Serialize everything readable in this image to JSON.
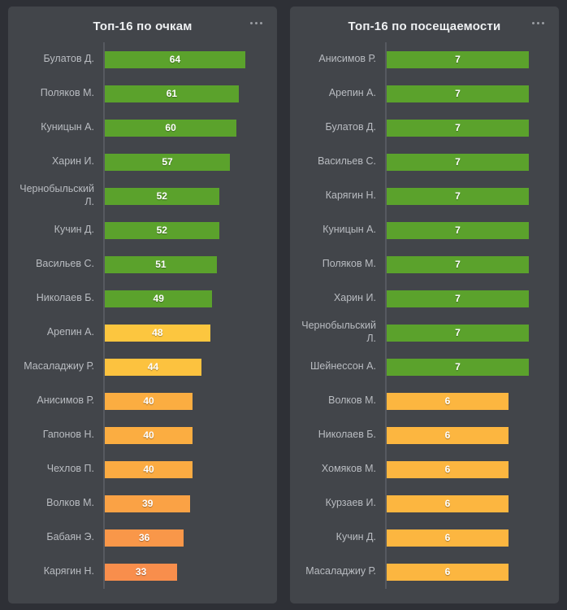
{
  "theme": {
    "page_background": "#2e3036",
    "panel_background": "#42454a",
    "axis_line_color": "#565960",
    "label_color": "#b9bcc1",
    "title_color": "#eef0f2",
    "bar_value_color": "#ffffff",
    "green": "#5ba22c",
    "yellow": "#fcc63f",
    "orange": "#f88e4c"
  },
  "panels": [
    {
      "menu_icon": "ellipsis-menu"
    },
    {
      "menu_icon": "ellipsis-menu"
    }
  ],
  "chart_data": [
    {
      "type": "bar",
      "orientation": "horizontal",
      "title": "Топ-16 по очкам",
      "categories": [
        "Булатов Д.",
        "Поляков М.",
        "Куницын А.",
        "Харин И.",
        "Чернобыльский Л.",
        "Кучин Д.",
        "Васильев С.",
        "Николаев Б.",
        "Арепин А.",
        "Масаладжиу Р.",
        "Анисимов Р.",
        "Гапонов Н.",
        "Чехлов П.",
        "Волков М.",
        "Бабаян Э.",
        "Карягин Н."
      ],
      "values": [
        64,
        61,
        60,
        57,
        52,
        52,
        51,
        49,
        48,
        44,
        40,
        40,
        40,
        39,
        36,
        33
      ],
      "bar_colors": [
        "#5ba22c",
        "#5ba22c",
        "#5ba22c",
        "#5ba22c",
        "#5ba22c",
        "#5ba22c",
        "#5ba22c",
        "#5ba22c",
        "#fcc63f",
        "#fcc23f",
        "#fbad41",
        "#fbad41",
        "#fbab42",
        "#faa245",
        "#f99749",
        "#f88e4c"
      ],
      "value_labels": "inside-center",
      "xlim": [
        0,
        74
      ],
      "grid": false,
      "legend": false
    },
    {
      "type": "bar",
      "orientation": "horizontal",
      "title": "Топ-16 по посещаемости",
      "categories": [
        "Анисимов Р.",
        "Арепин А.",
        "Булатов Д.",
        "Васильев С.",
        "Карягин Н.",
        "Куницын А.",
        "Поляков М.",
        "Харин И.",
        "Чернобыльский Л.",
        "Шейнессон А.",
        "Волков М.",
        "Николаев Б.",
        "Хомяков М.",
        "Курзаев И.",
        "Кучин Д.",
        "Масаладжиу Р."
      ],
      "values": [
        7,
        7,
        7,
        7,
        7,
        7,
        7,
        7,
        7,
        7,
        6,
        6,
        6,
        6,
        6,
        6
      ],
      "bar_colors": [
        "#5ba22c",
        "#5ba22c",
        "#5ba22c",
        "#5ba22c",
        "#5ba22c",
        "#5ba22c",
        "#5ba22c",
        "#5ba22c",
        "#5ba22c",
        "#5ba22c",
        "#fcb640",
        "#fcb640",
        "#fcb640",
        "#fcb640",
        "#fcb640",
        "#fcb640"
      ],
      "value_labels": "inside-center",
      "xlim": [
        0,
        8
      ],
      "grid": false,
      "legend": false
    }
  ]
}
